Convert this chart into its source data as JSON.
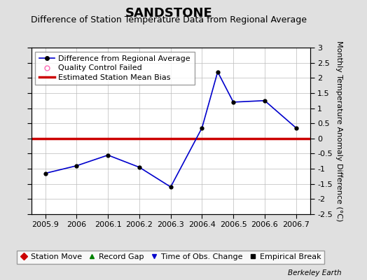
{
  "title": "SANDSTONE",
  "subtitle": "Difference of Station Temperature Data from Regional Average",
  "ylabel": "Monthly Temperature Anomaly Difference (°C)",
  "x_pts": [
    2005.9,
    2006.0,
    2006.1,
    2006.2,
    2006.3,
    2006.4,
    2006.45,
    2006.5,
    2006.6,
    2006.7
  ],
  "y_pts": [
    -1.15,
    -0.9,
    -0.55,
    -0.95,
    -1.6,
    0.35,
    2.2,
    1.2,
    1.25,
    0.35
  ],
  "bias_y": 0.0,
  "xlim": [
    2005.855,
    2006.745
  ],
  "ylim": [
    -2.5,
    3.0
  ],
  "yticks": [
    -2.5,
    -2,
    -1.5,
    -1,
    -0.5,
    0,
    0.5,
    1,
    1.5,
    2,
    2.5,
    3
  ],
  "ytick_labels": [
    "-2.5",
    "-2",
    "-1.5",
    "-1",
    "-0.5",
    "0",
    "0.5",
    "1",
    "1.5",
    "2",
    "2.5",
    "3"
  ],
  "xticks": [
    2005.9,
    2006.0,
    2006.1,
    2006.2,
    2006.3,
    2006.4,
    2006.5,
    2006.6,
    2006.7
  ],
  "xtick_labels": [
    "2005.9",
    "2006",
    "2006.1",
    "2006.2",
    "2006.3",
    "2006.4",
    "2006.5",
    "2006.6",
    "2006.7"
  ],
  "line_color": "#0000cc",
  "bias_color": "#cc0000",
  "marker_color": "#000000",
  "bg_color": "#e0e0e0",
  "plot_bg_color": "#ffffff",
  "title_fontsize": 13,
  "subtitle_fontsize": 9,
  "axis_label_fontsize": 8,
  "tick_fontsize": 8,
  "legend_fontsize": 8,
  "bottom_legend_items": [
    {
      "label": "Station Move",
      "color": "#cc0000",
      "marker": "D"
    },
    {
      "label": "Record Gap",
      "color": "#008000",
      "marker": "^"
    },
    {
      "label": "Time of Obs. Change",
      "color": "#0000cc",
      "marker": "v"
    },
    {
      "label": "Empirical Break",
      "color": "#000000",
      "marker": "s"
    }
  ]
}
